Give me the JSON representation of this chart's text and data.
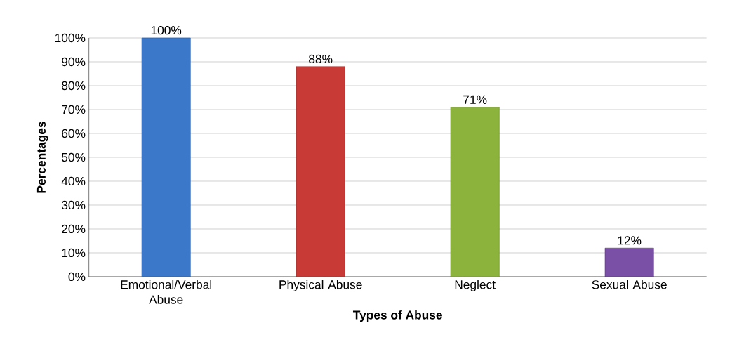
{
  "chart_data": {
    "type": "bar",
    "xlabel": "Types of Abuse",
    "ylabel": "Percentages",
    "categories": [
      "Emotional/Verbal Abuse",
      "Physical Abuse",
      "Neglect",
      "Sexual Abuse"
    ],
    "values": [
      100,
      88,
      71,
      12
    ],
    "colors": [
      "#3b78c9",
      "#c83a36",
      "#8cb43c",
      "#7a4fa6"
    ],
    "value_labels": [
      "100%",
      "88%",
      "71%",
      "12%"
    ],
    "ylim": [
      0,
      100
    ],
    "yticks": [
      {
        "value": 0,
        "label": "0%"
      },
      {
        "value": 10,
        "label": "10%"
      },
      {
        "value": 20,
        "label": "20%"
      },
      {
        "value": 30,
        "label": "30%"
      },
      {
        "value": 40,
        "label": "40%"
      },
      {
        "value": 50,
        "label": "50%"
      },
      {
        "value": 60,
        "label": "60%"
      },
      {
        "value": 70,
        "label": "70%"
      },
      {
        "value": 80,
        "label": "80%"
      },
      {
        "value": 90,
        "label": "90%"
      },
      {
        "value": 100,
        "label": "100%"
      }
    ],
    "grid": "y"
  }
}
